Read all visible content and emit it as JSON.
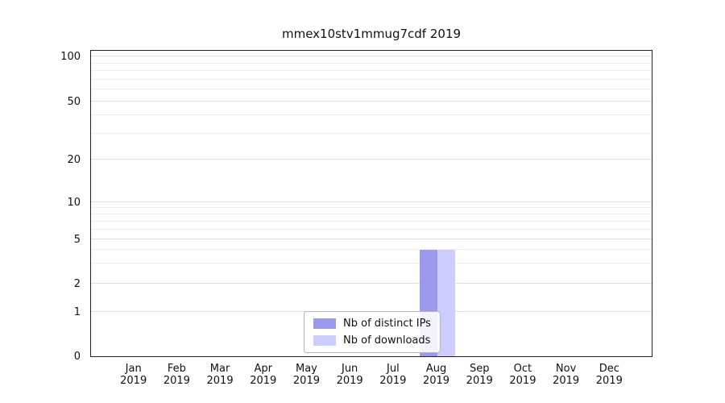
{
  "chart_data": {
    "type": "bar",
    "title": "mmex10stv1mmug7cdf 2019",
    "categories": [
      "Jan",
      "Feb",
      "Mar",
      "Apr",
      "May",
      "Jun",
      "Jul",
      "Aug",
      "Sep",
      "Oct",
      "Nov",
      "Dec"
    ],
    "year_label": "2019",
    "series": [
      {
        "name": "Nb of distinct IPs",
        "color": "#9999ee",
        "values": [
          0,
          0,
          0,
          0,
          0,
          0,
          0,
          4,
          0,
          0,
          0,
          0
        ]
      },
      {
        "name": "Nb of downloads",
        "color": "#ccccff",
        "values": [
          0,
          0,
          0,
          0,
          0,
          0,
          0,
          4,
          0,
          0,
          0,
          0
        ]
      }
    ],
    "y_ticks": [
      0,
      1,
      2,
      5,
      10,
      20,
      50,
      100
    ],
    "y_minor_gridlines": [
      3,
      4,
      6,
      7,
      8,
      9,
      30,
      40,
      60,
      70,
      80,
      90
    ],
    "ylim": [
      0,
      110
    ],
    "yscale": "log-like",
    "grid": true,
    "legend": {
      "position": "bottom-center",
      "entries": [
        "Nb of distinct IPs",
        "Nb of downloads"
      ]
    }
  }
}
